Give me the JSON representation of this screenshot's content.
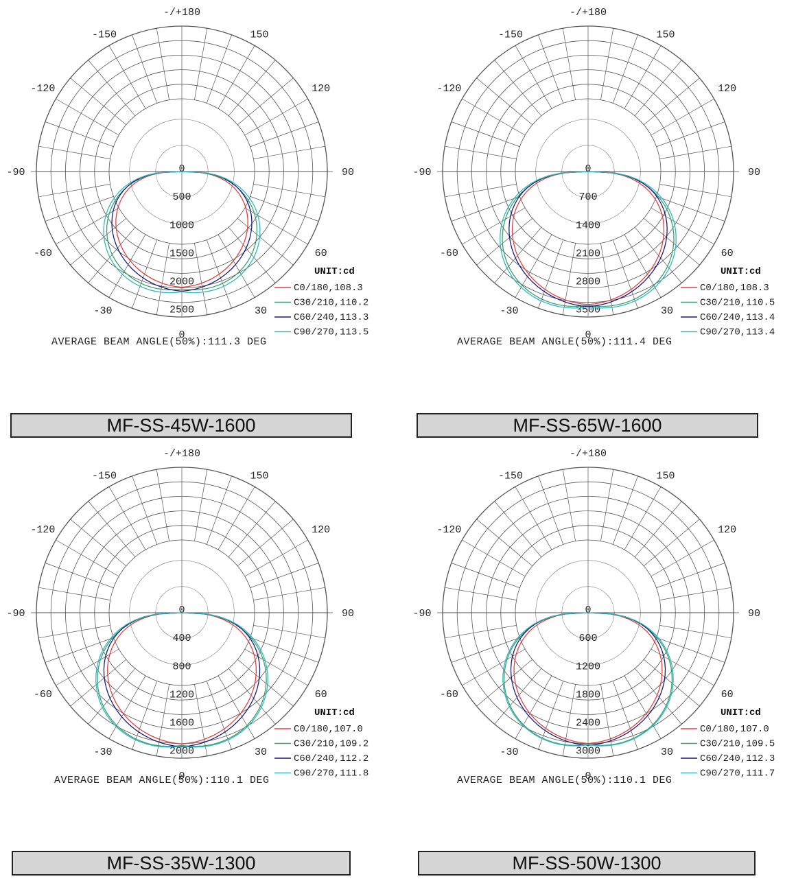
{
  "chart_data": [
    {
      "type": "polar",
      "model": "MF-SS-45W-1600",
      "unit": "UNIT:cd",
      "angle_labels": {
        "top": "-/+180",
        "bottom": "0",
        "a150": "150",
        "a_150": "-150",
        "a120": "120",
        "a_120": "-120",
        "a90": "90",
        "a_90": "-90",
        "a60": "60",
        "a_60": "-60",
        "a30": "30",
        "a_30": "-30"
      },
      "radial_ticks": [
        0,
        500,
        1000,
        1500,
        2000,
        2500
      ],
      "rmax": 2500,
      "average_beam_angle": "AVERAGE BEAM ANGLE(50%):111.3 DEG",
      "series": [
        {
          "name": "C0/180,108.3",
          "color": "#e04040",
          "peak": 2050,
          "beam": 108.3
        },
        {
          "name": "C30/210,110.2",
          "color": "#3aa070",
          "peak": 2080,
          "beam": 110.2
        },
        {
          "name": "C60/240,113.3",
          "color": "#1a1a7a",
          "peak": 2120,
          "beam": 113.3
        },
        {
          "name": "C90/270,113.5",
          "color": "#30b8c0",
          "peak": 2130,
          "beam": 113.5
        }
      ]
    },
    {
      "type": "polar",
      "model": "MF-SS-65W-1600",
      "unit": "UNIT:cd",
      "angle_labels": {
        "top": "-/+180",
        "bottom": "0",
        "a150": "150",
        "a_150": "-150",
        "a120": "120",
        "a_120": "-120",
        "a90": "90",
        "a_90": "-90",
        "a60": "60",
        "a_60": "-60",
        "a30": "30",
        "a_30": "-30"
      },
      "radial_ticks": [
        0,
        700,
        1400,
        2100,
        2800,
        3500
      ],
      "rmax": 3500,
      "average_beam_angle": "AVERAGE BEAM ANGLE(50%):111.4 DEG",
      "series": [
        {
          "name": "C0/180,108.3",
          "color": "#e04040",
          "peak": 3300,
          "beam": 108.3
        },
        {
          "name": "C30/210,110.5",
          "color": "#3aa070",
          "peak": 3320,
          "beam": 110.5
        },
        {
          "name": "C60/240,113.4",
          "color": "#1a1a7a",
          "peak": 3350,
          "beam": 113.4
        },
        {
          "name": "C90/270,113.4",
          "color": "#30b8c0",
          "peak": 3360,
          "beam": 113.4
        }
      ]
    },
    {
      "type": "polar",
      "model": "MF-SS-35W-1300",
      "unit": "UNIT:cd",
      "angle_labels": {
        "top": "-/+180",
        "bottom": "0",
        "a150": "150",
        "a_150": "-150",
        "a120": "120",
        "a_120": "-120",
        "a90": "90",
        "a_90": "-90",
        "a60": "60",
        "a_60": "-60",
        "a30": "30",
        "a_30": "-30"
      },
      "radial_ticks": [
        0,
        400,
        800,
        1200,
        1600,
        2000
      ],
      "rmax": 2000,
      "average_beam_angle": "AVERAGE BEAM ANGLE(50%):110.1 DEG",
      "series": [
        {
          "name": "C0/180,107.0",
          "color": "#e04040",
          "peak": 1860,
          "beam": 107.0
        },
        {
          "name": "C30/210,109.2",
          "color": "#3aa070",
          "peak": 1880,
          "beam": 109.2
        },
        {
          "name": "C60/240,112.2",
          "color": "#1a1a7a",
          "peak": 1900,
          "beam": 112.2
        },
        {
          "name": "C90/270,111.8",
          "color": "#30b8c0",
          "peak": 1890,
          "beam": 111.8
        }
      ]
    },
    {
      "type": "polar",
      "model": "MF-SS-50W-1300",
      "unit": "UNIT:cd",
      "angle_labels": {
        "top": "-/+180",
        "bottom": "0",
        "a150": "150",
        "a_150": "-150",
        "a120": "120",
        "a_120": "-120",
        "a90": "90",
        "a_90": "-90",
        "a60": "60",
        "a_60": "-60",
        "a30": "30",
        "a_30": "-30"
      },
      "radial_ticks": [
        0,
        600,
        1200,
        1800,
        2400,
        3000
      ],
      "rmax": 3000,
      "average_beam_angle": "AVERAGE BEAM ANGLE(50%):110.1 DEG",
      "series": [
        {
          "name": "C0/180,107.0",
          "color": "#e04040",
          "peak": 2780,
          "beam": 107.0
        },
        {
          "name": "C30/210,109.5",
          "color": "#3aa070",
          "peak": 2800,
          "beam": 109.5
        },
        {
          "name": "C60/240,112.3",
          "color": "#1a1a7a",
          "peak": 2820,
          "beam": 112.3
        },
        {
          "name": "C90/270,111.7",
          "color": "#30b8c0",
          "peak": 2810,
          "beam": 111.7
        }
      ]
    }
  ]
}
